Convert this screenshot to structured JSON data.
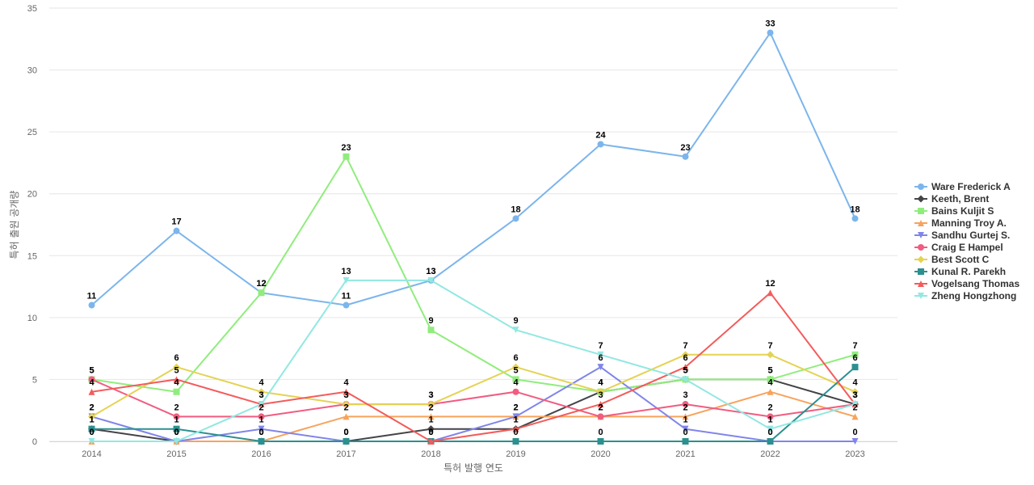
{
  "chart_data": {
    "type": "line",
    "title": "",
    "xlabel": "특허 발행 연도",
    "ylabel": "특허 출원 공개량",
    "ylim": [
      0,
      35
    ],
    "yticks": [
      0,
      5,
      10,
      15,
      20,
      25,
      30,
      35
    ],
    "grid": true,
    "legend_position": "right",
    "categories": [
      "2014",
      "2015",
      "2016",
      "2017",
      "2018",
      "2019",
      "2020",
      "2021",
      "2022",
      "2023"
    ],
    "series": [
      {
        "name": "Ware Frederick A",
        "color": "#7cb5ec",
        "marker": "circle",
        "values": [
          11,
          17,
          12,
          11,
          13,
          18,
          24,
          23,
          33,
          18
        ]
      },
      {
        "name": "Keeth, Brent",
        "color": "#434348",
        "marker": "diamond",
        "values": [
          1,
          0,
          0,
          0,
          1,
          1,
          4,
          5,
          5,
          3
        ]
      },
      {
        "name": "Bains Kuljit S",
        "color": "#90ed7d",
        "marker": "square",
        "values": [
          5,
          4,
          12,
          23,
          9,
          5,
          4,
          5,
          5,
          7
        ]
      },
      {
        "name": "Manning Troy A.",
        "color": "#f7a35c",
        "marker": "triangle",
        "values": [
          0,
          0,
          0,
          2,
          2,
          2,
          2,
          2,
          4,
          2
        ]
      },
      {
        "name": "Sandhu Gurtej S.",
        "color": "#8085e9",
        "marker": "triangle-down",
        "values": [
          2,
          0,
          1,
          0,
          0,
          2,
          6,
          1,
          0,
          0
        ]
      },
      {
        "name": "Craig E Hampel",
        "color": "#f15c80",
        "marker": "circle",
        "values": [
          5,
          2,
          2,
          3,
          3,
          4,
          2,
          3,
          2,
          3
        ]
      },
      {
        "name": "Best Scott C",
        "color": "#e4d354",
        "marker": "diamond",
        "values": [
          2,
          6,
          4,
          3,
          3,
          6,
          4,
          7,
          7,
          4
        ]
      },
      {
        "name": "Kunal R. Parekh",
        "color": "#2b908f",
        "marker": "square",
        "values": [
          1,
          1,
          0,
          0,
          0,
          0,
          0,
          0,
          0,
          6
        ]
      },
      {
        "name": "Vogelsang Thomas",
        "color": "#f45b5b",
        "marker": "triangle",
        "values": [
          4,
          5,
          3,
          4,
          0,
          1,
          3,
          6,
          12,
          3
        ]
      },
      {
        "name": "Zheng Hongzhong",
        "color": "#91e8e1",
        "marker": "triangle-down",
        "values": [
          0,
          0,
          3,
          13,
          13,
          9,
          7,
          5,
          1,
          3
        ]
      }
    ]
  }
}
